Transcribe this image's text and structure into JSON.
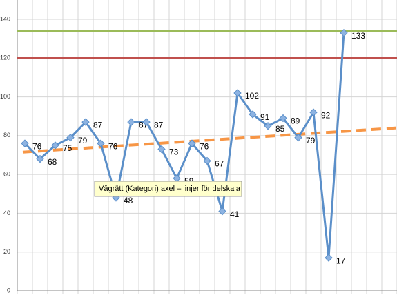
{
  "chart_data": {
    "type": "line",
    "categories": [
      null,
      null,
      null,
      null,
      null,
      null,
      null,
      null,
      null,
      null,
      null,
      null,
      null,
      null,
      null,
      null,
      null,
      null,
      null,
      null,
      null,
      null,
      null,
      null,
      null
    ],
    "series": [
      {
        "color": "#5b8fc9",
        "values": [
          76,
          68,
          75,
          79,
          87,
          76,
          48,
          87,
          87,
          73,
          58,
          76,
          67,
          41,
          102,
          91,
          85,
          89,
          79,
          92,
          17,
          133,
          null,
          null,
          null
        ]
      }
    ],
    "reference_lines": [
      {
        "value": 134,
        "color": "#9bbb59"
      },
      {
        "value": 120,
        "color": "#c0504d"
      }
    ],
    "trendline": {
      "start": 71.5,
      "end": 84,
      "color": "#f79646"
    },
    "ylim": [
      0,
      140
    ],
    "yticks": [
      0,
      20,
      40,
      60,
      80,
      100,
      120,
      140
    ],
    "grid": true,
    "tooltip": "Vågrätt (Kategori) axel – linjer för delskala"
  }
}
